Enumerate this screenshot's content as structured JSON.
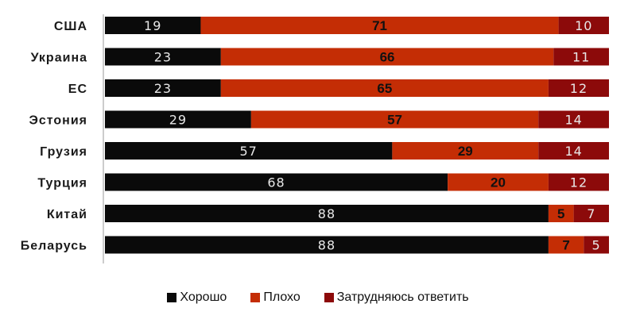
{
  "colors": {
    "good": "#0a0a0a",
    "bad": "#c42d05",
    "hard": "#8c0a0a",
    "axis": "#999999"
  },
  "legend": {
    "good": "Хорошо",
    "bad": "Плохо",
    "hard": "Затрудняюсь ответить"
  },
  "chart_data": {
    "type": "bar",
    "orientation": "horizontal",
    "stacked": true,
    "categories": [
      "США",
      "Украина",
      "ЕС",
      "Эстония",
      "Грузия",
      "Турция",
      "Китай",
      "Беларусь"
    ],
    "series": [
      {
        "name": "Хорошо",
        "values": [
          19,
          23,
          23,
          29,
          57,
          68,
          88,
          88
        ]
      },
      {
        "name": "Плохо",
        "values": [
          71,
          66,
          65,
          57,
          29,
          20,
          5,
          7
        ]
      },
      {
        "name": "Затрудняюсь ответить",
        "values": [
          10,
          11,
          12,
          14,
          14,
          12,
          7,
          5
        ]
      }
    ],
    "xlim": [
      0,
      100
    ],
    "grid": false,
    "legend_position": "bottom"
  }
}
